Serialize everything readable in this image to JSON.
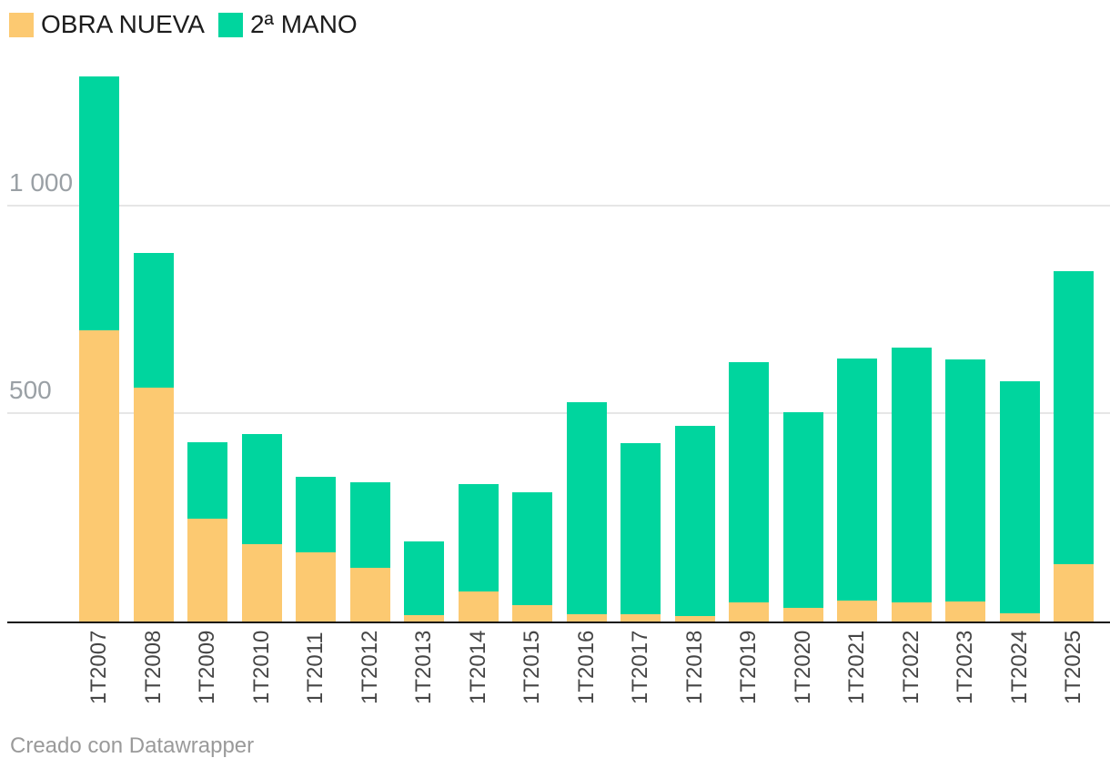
{
  "legend": {
    "items": [
      {
        "label": "OBRA NUEVA",
        "color": "#fcc971"
      },
      {
        "label": "2ª MANO",
        "color": "#00d59e"
      }
    ]
  },
  "footer": {
    "credit": "Creado con Datawrapper"
  },
  "colors": {
    "obra_nueva": "#fcc971",
    "segunda_mano": "#00d59e",
    "gridline": "#e6e6e6",
    "axis_line": "#141414",
    "x_tick_text": "#454545",
    "y_tick_text": "#9aa0a5",
    "legend_text": "#1d1d1d",
    "footer_text": "#9a9a9a"
  },
  "chart_data": {
    "type": "bar",
    "stacked": true,
    "title": "",
    "xlabel": "",
    "ylabel": "",
    "categories": [
      "1T2007",
      "1T2008",
      "1T2009",
      "1T2010",
      "1T2011",
      "1T2012",
      "1T2013",
      "1T2014",
      "1T2015",
      "1T2016",
      "1T2017",
      "1T2018",
      "1T2019",
      "1T2020",
      "1T2021",
      "1T2022",
      "1T2023",
      "1T2024",
      "1T2025"
    ],
    "series": [
      {
        "name": "OBRA NUEVA",
        "color": "#fcc971",
        "values": [
          700,
          563,
          248,
          186,
          167,
          130,
          15,
          73,
          39,
          17,
          18,
          13,
          47,
          33,
          50,
          45,
          49,
          20,
          138
        ]
      },
      {
        "name": "2ª MANO",
        "color": "#00d59e",
        "values": [
          610,
          322,
          183,
          264,
          181,
          204,
          178,
          257,
          271,
          510,
          410,
          457,
          576,
          469,
          582,
          613,
          580,
          557,
          705
        ]
      }
    ],
    "totals": [
      1310,
      885,
      431,
      450,
      348,
      334,
      193,
      330,
      310,
      527,
      428,
      470,
      623,
      502,
      632,
      658,
      629,
      577,
      843
    ],
    "ylim": [
      0,
      1400
    ],
    "y_ticks": [
      {
        "value": 500,
        "label": "500"
      },
      {
        "value": 1000,
        "label": "1 000"
      }
    ],
    "grid": "horizontal",
    "legend_position": "top-left"
  }
}
